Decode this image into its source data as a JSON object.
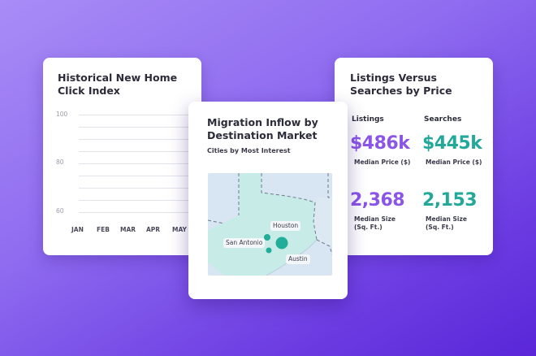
{
  "chart_card": {
    "title": "Historical New Home Click Index",
    "y_ticks": [
      "100",
      "80",
      "60"
    ],
    "months": [
      "JAN",
      "FEB",
      "MAR",
      "APR",
      "MAY"
    ]
  },
  "map_card": {
    "title": "Migration Inflow by Destination Market",
    "subtitle": "Cities by Most Interest",
    "cities": [
      "Houston",
      "San Antonio",
      "Austin"
    ],
    "colors": {
      "region": "#c7ebe6",
      "dot": "#22ad9a",
      "water": "#d8e5f2"
    }
  },
  "price_card": {
    "title": "Listings Versus Searches by Price",
    "listings_label": "Listings",
    "searches_label": "Searches",
    "listings_price": "$486k",
    "searches_price": "$445k",
    "price_caption": "Median Price ($)",
    "listings_size": "2,368",
    "searches_size": "2,153",
    "size_caption_1": "Median Size",
    "size_caption_2": "(Sq. Ft.)",
    "colors": {
      "listings": "#8b55e8",
      "searches": "#23a89a"
    }
  }
}
